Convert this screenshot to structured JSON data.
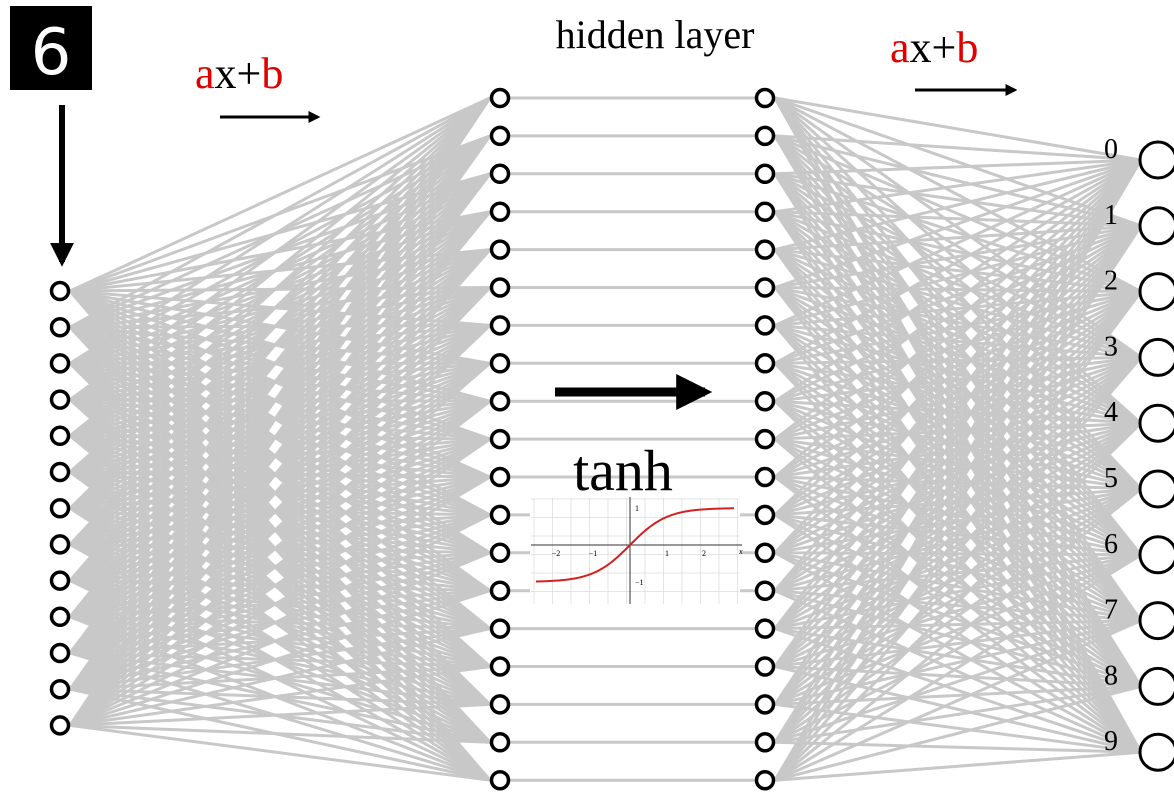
{
  "input_digit": "6",
  "transform_left": {
    "a": "a",
    "x": "x+",
    "b": "b"
  },
  "transform_right": {
    "a": "a",
    "x": "x+",
    "b": "b"
  },
  "hidden_layer_title": "hidden layer",
  "activation": "tanh",
  "activation_plot": {
    "x_ticks": [
      "−2",
      "−1",
      "1",
      "2"
    ],
    "y_ticks": [
      "1",
      "−1"
    ],
    "x_axis": "x"
  },
  "output_labels": [
    "0",
    "1",
    "2",
    "3",
    "4",
    "5",
    "6",
    "7",
    "8",
    "9"
  ]
}
